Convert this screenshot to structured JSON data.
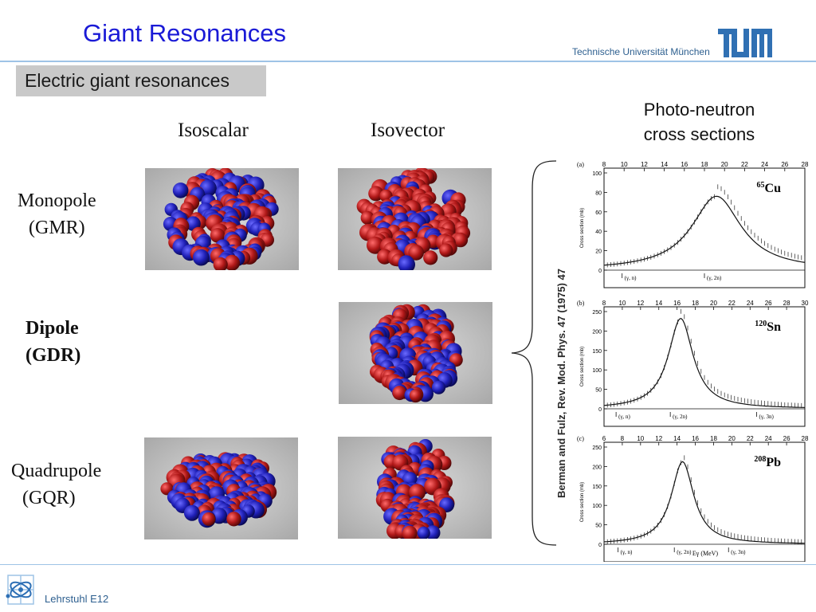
{
  "header": {
    "title": "Giant Resonances",
    "institution": "Technische Universität München",
    "logo": "TUM"
  },
  "section": {
    "label": "Electric giant resonances"
  },
  "columns": {
    "isoscalar": "Isoscalar",
    "isovector": "Isovector"
  },
  "rows": {
    "monopole": [
      "Monopole",
      "(GMR)"
    ],
    "dipole": [
      "Dipole",
      "(GDR)"
    ],
    "quadrupole": [
      "Quadrupole",
      "(GQR)"
    ]
  },
  "photo_neutron": {
    "title_line1": "Photo-neutron",
    "title_line2": "cross sections"
  },
  "citation": "Berman and Fulz, Rev. Mod. Phys. 47 (1975) 47",
  "plots": {
    "xlabel": "Eγ (MeV)",
    "ylabel": "Cross section (mb)",
    "panels": [
      {
        "tag": "(a)",
        "mass": "65",
        "element": "Cu",
        "x_ticks": [
          "8",
          "10",
          "12",
          "14",
          "16",
          "18",
          "20",
          "22",
          "24",
          "26",
          "28"
        ],
        "y_ticks": [
          "0",
          "20",
          "40",
          "60",
          "80",
          "100"
        ],
        "markers": [
          "(γ, n)",
          "(γ, 2n)"
        ]
      },
      {
        "tag": "(b)",
        "mass": "120",
        "element": "Sn",
        "x_ticks": [
          "8",
          "10",
          "12",
          "14",
          "16",
          "18",
          "20",
          "22",
          "24",
          "26",
          "28",
          "30"
        ],
        "y_ticks": [
          "0",
          "50",
          "100",
          "150",
          "200",
          "250"
        ],
        "markers": [
          "(γ, n)",
          "(γ, 2n)",
          "(γ, 3n)"
        ]
      },
      {
        "tag": "(c)",
        "mass": "208",
        "element": "Pb",
        "x_ticks": [
          "6",
          "8",
          "10",
          "12",
          "14",
          "16",
          "18",
          "20",
          "22",
          "24",
          "26",
          "28"
        ],
        "y_ticks": [
          "0",
          "50",
          "100",
          "150",
          "200",
          "250"
        ],
        "markers": [
          "(γ, n)",
          "(γ, 2n)",
          "(γ, 3n)"
        ]
      }
    ]
  },
  "footer": {
    "label": "Lehrstuhl E12"
  },
  "colors": {
    "title": "#1a1ad6",
    "accent_line": "#9ec3e6",
    "nucleon_red": "#b01818",
    "nucleon_blue": "#2020b8"
  }
}
